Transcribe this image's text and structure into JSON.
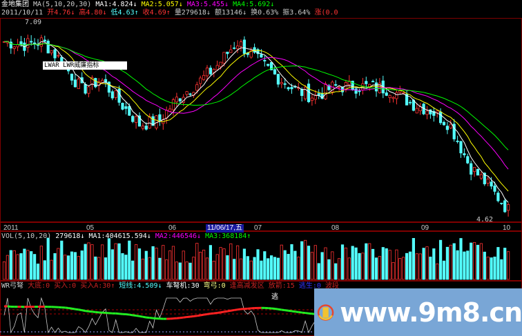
{
  "header": {
    "stock": "金地集团",
    "ma_label": "MA(5,10,20,30)",
    "ma1": "MA1:4.824↓",
    "ma2": "MA2:5.057↓",
    "ma3": "MA3:5.455↓",
    "ma4": "MA4:5.692↓",
    "date": "2011/10/11",
    "open": "开4.76↓",
    "high": "高4.80↓",
    "low": "低4.63↑",
    "close": "收4.69↑",
    "vol": "量279618↓",
    "amount": "额13146↓",
    "turnover": "换0.63%",
    "amplitude": "振3.64%",
    "change": "涨(0.0"
  },
  "price": {
    "high_label": "7.09",
    "low_label": "4.62",
    "tooltip": "LWAR  LWR威廉指标"
  },
  "axis": {
    "labels": [
      "2011",
      "05",
      "06",
      "07",
      "08",
      "09",
      "10"
    ],
    "cursor_date": "11/06/17,五"
  },
  "volume": {
    "label": "VOL(5,10,20)",
    "value": "279618↓",
    "ma1": "MA1:404615.594↓",
    "ma2": "MA2:446546↓",
    "ma3": "MA3:368184↑"
  },
  "wr": {
    "label": "WR弓弩",
    "items": [
      "大底:0",
      "买入:0",
      "买入A:30↑",
      "短线:4.509↓",
      "车弩机:30",
      "弯弓:0",
      "逢高减发区",
      "放箭:15",
      "逃生:0",
      "波段"
    ],
    "mark": "逃"
  },
  "watermark": {
    "text": "www.9m8.cn"
  },
  "colors": {
    "up": "#ff3232",
    "down": "#54ffff",
    "ma1": "#ffffff",
    "ma2": "#ffff00",
    "ma3": "#ff00ff",
    "ma4": "#00ff00",
    "grid": "#800000"
  },
  "chart_data": {
    "type": "candlestick",
    "price_path": [
      6.87,
      6.83,
      6.87,
      6.61,
      6.26,
      6.39,
      6.09,
      5.82,
      5.87,
      6.17,
      6.35,
      6.57,
      6.87,
      6.65,
      6.44,
      6.26,
      6.17,
      6.3,
      6.3,
      6.3,
      6.26,
      6.09,
      6.0,
      5.82,
      5.3,
      5.04,
      4.74
    ],
    "price_range": [
      4.62,
      7.09
    ]
  }
}
